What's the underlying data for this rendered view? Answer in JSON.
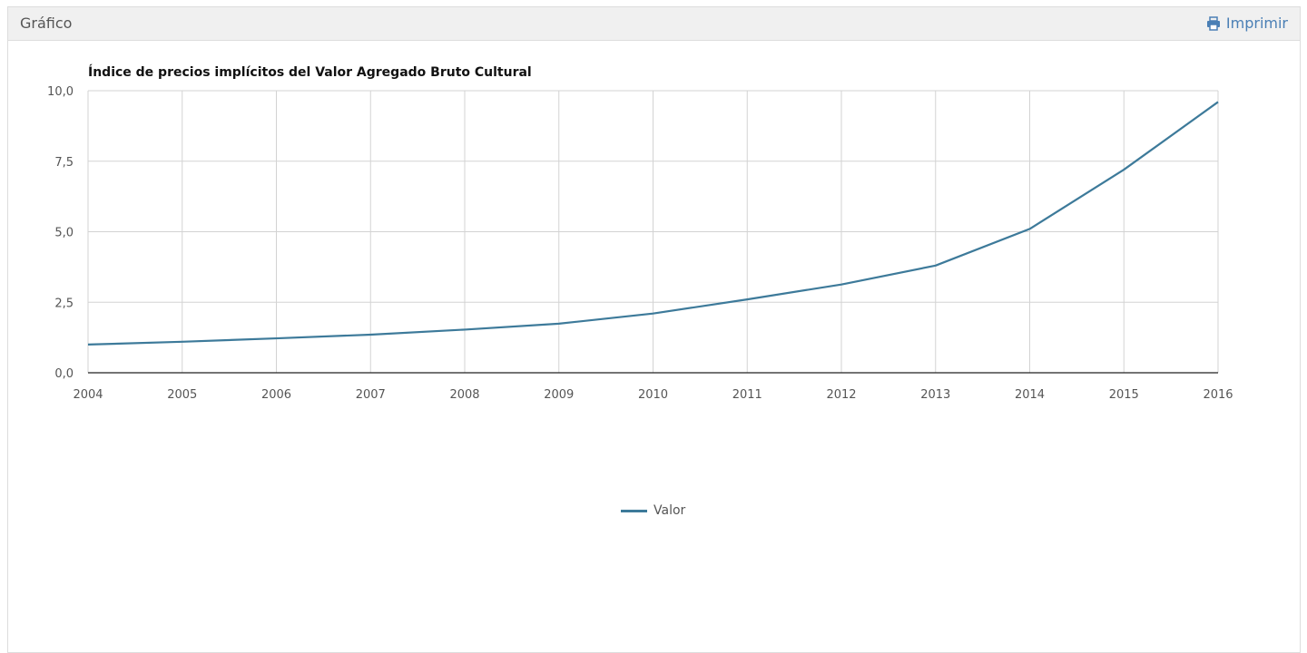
{
  "panel": {
    "title": "Gráfico",
    "print_label": "Imprimir",
    "print_icon": "printer-icon"
  },
  "colors": {
    "series": "#3d7a9a",
    "grid": "#d3d3d3",
    "axis": "#222222",
    "link": "#4a7fb5"
  },
  "chart_data": {
    "type": "line",
    "title": "Índice de precios implícitos del Valor Agregado Bruto Cultural",
    "xlabel": "",
    "ylabel": "",
    "x": [
      "2004",
      "2005",
      "2006",
      "2007",
      "2008",
      "2009",
      "2010",
      "2011",
      "2012",
      "2013",
      "2014",
      "2015",
      "2016"
    ],
    "y_ticks": [
      "0,0",
      "2,5",
      "5,0",
      "7,5",
      "10,0"
    ],
    "ylim": [
      0,
      10
    ],
    "grid": true,
    "legend_position": "bottom-center",
    "series": [
      {
        "name": "Valor",
        "values": [
          1.0,
          1.1,
          1.22,
          1.35,
          1.53,
          1.74,
          2.1,
          2.6,
          3.13,
          3.8,
          5.1,
          7.2,
          9.6
        ]
      }
    ]
  }
}
